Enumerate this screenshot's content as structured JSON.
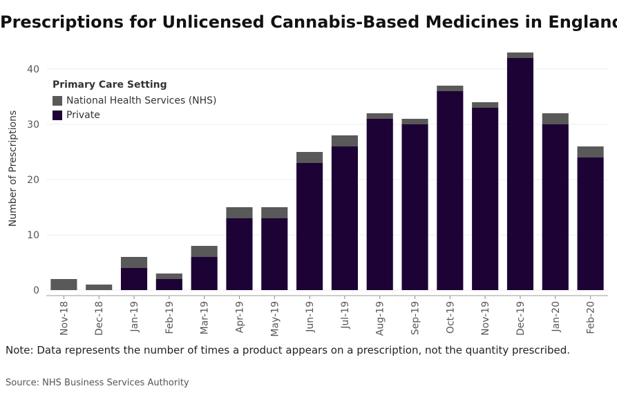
{
  "colors": {
    "nhs": "#595959",
    "private": "#1d0236",
    "grid": "#ececec",
    "axis": "#444444"
  },
  "chart_data": {
    "type": "bar",
    "stacked": true,
    "title": "Prescriptions for Unlicensed Cannabis-Based Medicines in England",
    "xlabel": "",
    "ylabel": "Number of Prescriptions",
    "ylim": [
      -1,
      45
    ],
    "yticks": [
      0,
      10,
      20,
      30,
      40
    ],
    "grid": true,
    "legend_title": "Primary Care Setting",
    "legend_position": "top-left",
    "categories": [
      "Nov-18",
      "Dec-18",
      "Jan-19",
      "Feb-19",
      "Mar-19",
      "Apr-19",
      "May-19",
      "Jun-19",
      "Jul-19",
      "Aug-19",
      "Sep-19",
      "Oct-19",
      "Nov-19",
      "Dec-19",
      "Jan-20",
      "Feb-20"
    ],
    "series": [
      {
        "name": "Private",
        "values": [
          0,
          0,
          4,
          2,
          6,
          13,
          13,
          23,
          26,
          31,
          30,
          36,
          33,
          42,
          30,
          24
        ]
      },
      {
        "name": "National Health Services (NHS)",
        "values": [
          2,
          1,
          2,
          1,
          2,
          2,
          2,
          2,
          2,
          1,
          1,
          1,
          1,
          1,
          2,
          2
        ]
      }
    ]
  },
  "note": "Note: Data represents the number of times a product appears on a prescription, not the quantity prescribed.",
  "source": "Source: NHS Business Services Authority"
}
